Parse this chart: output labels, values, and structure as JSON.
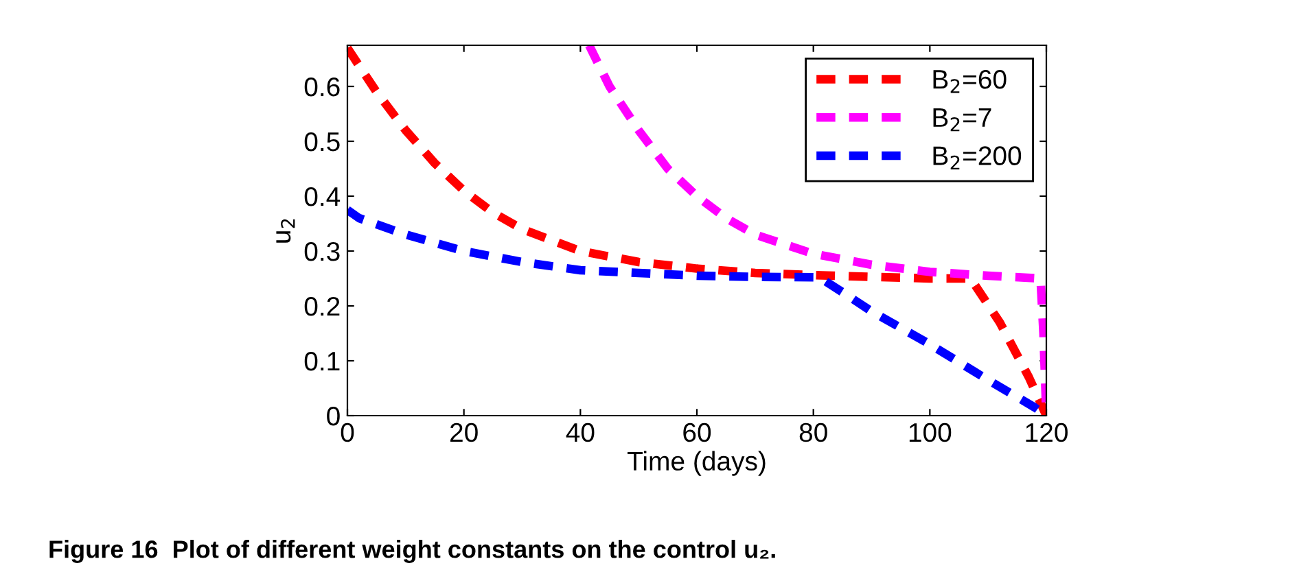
{
  "chart_data": {
    "type": "line",
    "xlabel": "Time (days)",
    "ylabel": "u$_{2}$",
    "annotations": [
      "Figure 16  Plot of different weight constants on the control u₂."
    ],
    "xlim": [
      0,
      120
    ],
    "xticks": [
      0,
      20,
      40,
      60,
      80,
      100,
      120
    ],
    "ylim": [
      0,
      0.675
    ],
    "yticks": [
      0,
      0.1,
      0.2,
      0.3,
      0.4,
      0.5,
      0.6
    ],
    "grid": false,
    "legend": "top right",
    "line_style": "dashed",
    "marker": "none",
    "series": [
      {
        "name": "B$_{2}$=60",
        "color": "#ff0000",
        "x": [
          0,
          5,
          10,
          15,
          20,
          25,
          30,
          40,
          50,
          60,
          70,
          80,
          90,
          100,
          107,
          112,
          117,
          120
        ],
        "values": [
          0.67,
          0.59,
          0.52,
          0.46,
          0.41,
          0.37,
          0.34,
          0.3,
          0.28,
          0.268,
          0.26,
          0.256,
          0.253,
          0.25,
          0.25,
          0.17,
          0.07,
          0
        ]
      },
      {
        "name": "B$_{2}$=7",
        "color": "#ff00ff",
        "x": [
          41.5,
          45,
          50,
          55,
          60,
          65,
          70,
          80,
          90,
          100,
          110,
          119,
          119.5,
          120
        ],
        "values": [
          0.675,
          0.6,
          0.52,
          0.45,
          0.4,
          0.36,
          0.33,
          0.295,
          0.275,
          0.262,
          0.255,
          0.25,
          0.15,
          0
        ]
      },
      {
        "name": "B$_{2}$=200",
        "color": "#0000ff",
        "x": [
          0,
          2,
          10,
          20,
          30,
          40,
          50,
          60,
          70,
          81,
          85,
          90,
          100,
          110,
          118,
          120
        ],
        "values": [
          0.375,
          0.36,
          0.33,
          0.3,
          0.28,
          0.265,
          0.26,
          0.255,
          0.253,
          0.252,
          0.225,
          0.19,
          0.13,
          0.065,
          0.015,
          0
        ]
      }
    ]
  }
}
